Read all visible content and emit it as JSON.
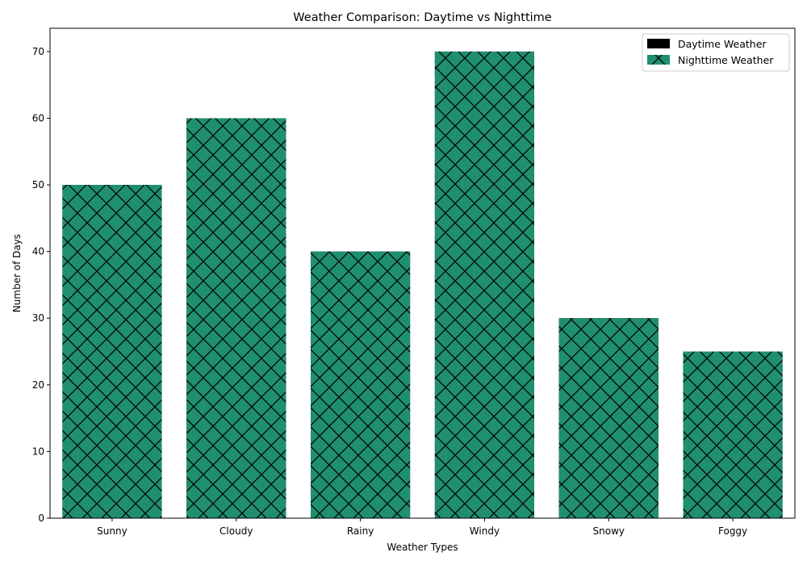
{
  "chart_data": {
    "type": "bar",
    "title": "Weather Comparison: Daytime vs Nighttime",
    "xlabel": "Weather Types",
    "ylabel": "Number of Days",
    "categories": [
      "Sunny",
      "Cloudy",
      "Rainy",
      "Windy",
      "Snowy",
      "Foggy"
    ],
    "series": [
      {
        "name": "Daytime Weather",
        "values": [
          50,
          60,
          40,
          70,
          30,
          25
        ],
        "color": "#000000",
        "hatch": "stars"
      },
      {
        "name": "Nighttime Weather",
        "values": [
          50,
          60,
          40,
          70,
          30,
          25
        ],
        "color": "#1f8f6f",
        "hatch": "x-with-dots"
      }
    ],
    "ylim": [
      0,
      73.5
    ],
    "yticks": [
      0,
      10,
      20,
      30,
      40,
      50,
      60,
      70
    ],
    "grid": false,
    "legend": "top-right",
    "overlay": true
  }
}
